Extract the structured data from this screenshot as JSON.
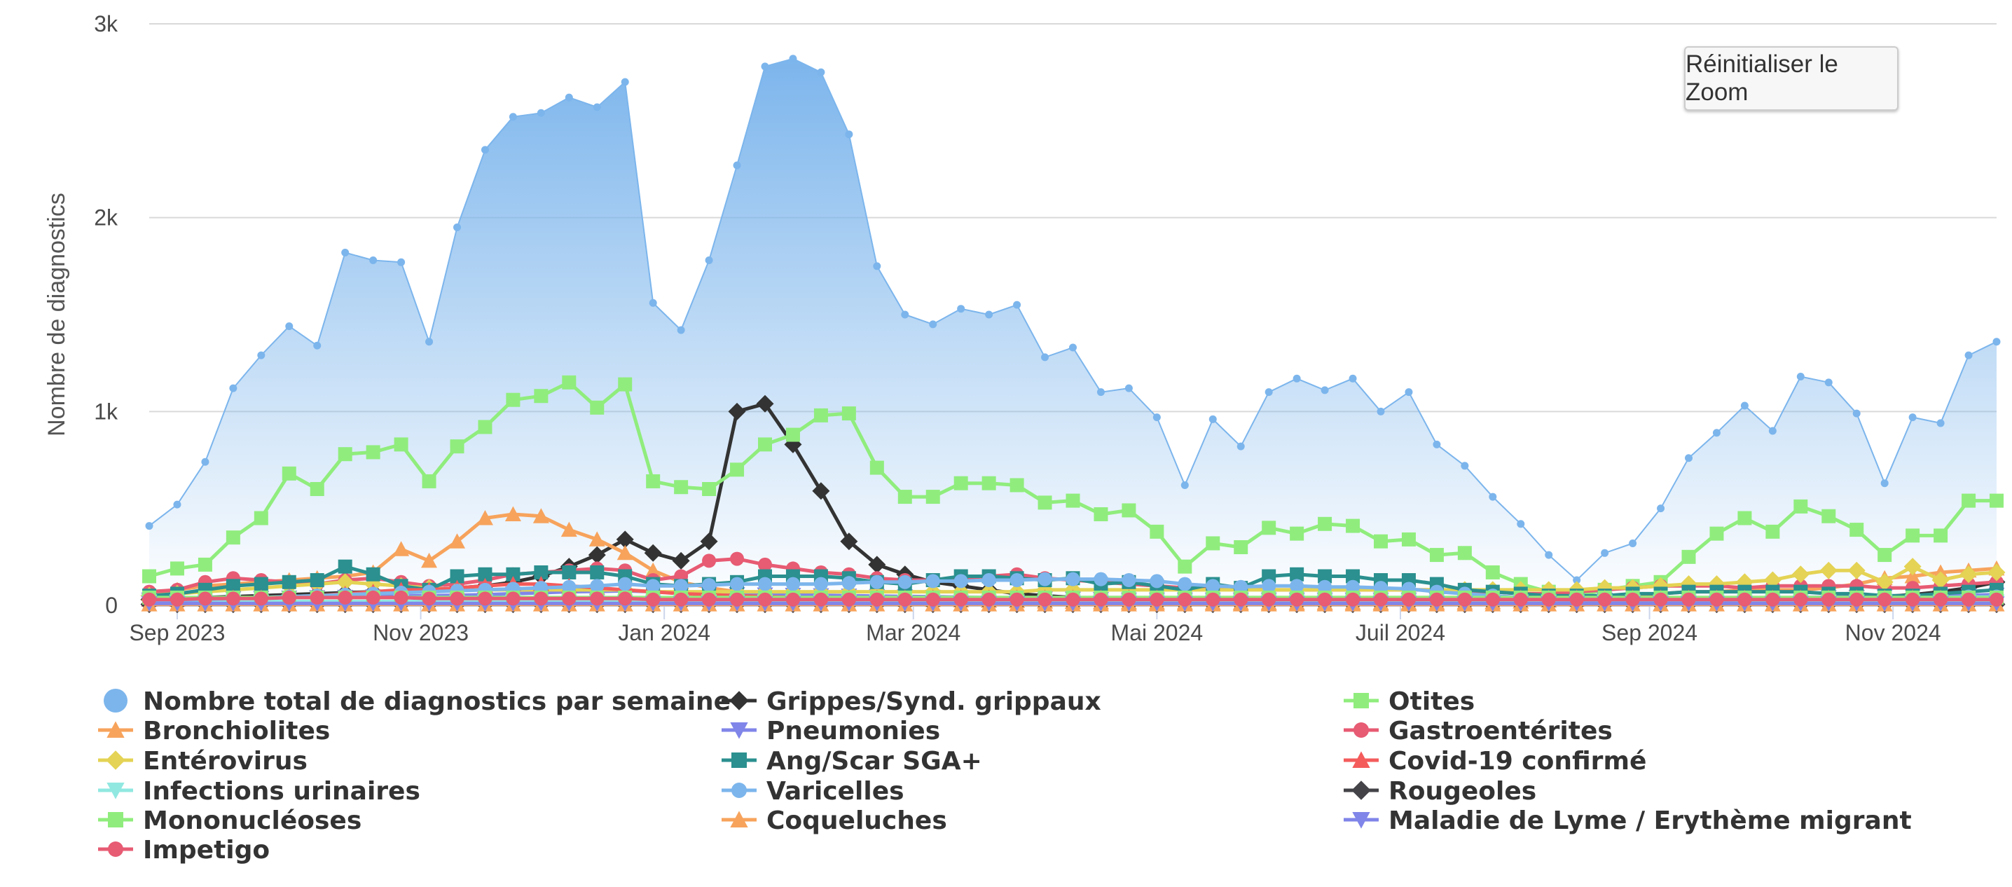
{
  "reset_zoom_label": "Réinitialiser le Zoom",
  "chart_data": {
    "type": "line",
    "ylabel": "Nombre de diagnostics",
    "xlabel": "",
    "ylim": [
      0,
      3000
    ],
    "y_ticks": [
      {
        "value": 0,
        "label": "0"
      },
      {
        "value": 1000,
        "label": "1k"
      },
      {
        "value": 2000,
        "label": "2k"
      },
      {
        "value": 3000,
        "label": "3k"
      }
    ],
    "x_start": "2023-08-27",
    "x_step_days": 7,
    "x_ticks": [
      {
        "week": 1,
        "label": "Sep 2023"
      },
      {
        "week": 9.7,
        "label": "Nov 2023"
      },
      {
        "week": 18.4,
        "label": "Jan 2024"
      },
      {
        "week": 27.3,
        "label": "Mar 2024"
      },
      {
        "week": 36,
        "label": "Mai 2024"
      },
      {
        "week": 44.7,
        "label": "Juil 2024"
      },
      {
        "week": 53.6,
        "label": "Sep 2024"
      },
      {
        "week": 62.3,
        "label": "Nov 2024"
      }
    ],
    "series": [
      {
        "name": "Nombre total de diagnostics par semaine",
        "color": "#7cb5ec",
        "symbol": "circle",
        "area": true,
        "values": [
          410,
          520,
          740,
          1120,
          1290,
          1440,
          1340,
          1820,
          1780,
          1770,
          1360,
          1950,
          2350,
          2520,
          2540,
          2620,
          2570,
          2700,
          1560,
          1420,
          1780,
          2270,
          2780,
          2820,
          2750,
          2430,
          1750,
          1500,
          1450,
          1530,
          1500,
          1550,
          1280,
          1330,
          1100,
          1120,
          970,
          620,
          960,
          820,
          1100,
          1170,
          1110,
          1170,
          1000,
          1100,
          830,
          720,
          560,
          420,
          260,
          130,
          270,
          320,
          500,
          760,
          890,
          1030,
          900,
          1180,
          1150,
          990,
          630,
          970,
          940,
          1290,
          1360
        ]
      },
      {
        "name": "Grippes/Synd. grippaux",
        "color": "#333333",
        "symbol": "diamond",
        "values": [
          30,
          35,
          40,
          45,
          50,
          55,
          60,
          65,
          70,
          75,
          80,
          90,
          100,
          120,
          150,
          200,
          260,
          340,
          270,
          230,
          330,
          1000,
          1040,
          830,
          590,
          330,
          210,
          160,
          120,
          100,
          80,
          60,
          50,
          40,
          35,
          30,
          25,
          20,
          20,
          18,
          15,
          15,
          12,
          12,
          10,
          10,
          10,
          10,
          10,
          10,
          10,
          10,
          12,
          12,
          15,
          15,
          18,
          20,
          25,
          30,
          35,
          40,
          45,
          55,
          70,
          90,
          120
        ]
      },
      {
        "name": "Otites",
        "color": "#90ed7d",
        "symbol": "square",
        "values": [
          150,
          190,
          210,
          350,
          450,
          680,
          600,
          780,
          790,
          830,
          640,
          820,
          920,
          1060,
          1080,
          1150,
          1020,
          1140,
          640,
          610,
          600,
          700,
          830,
          880,
          980,
          990,
          710,
          560,
          560,
          630,
          630,
          620,
          530,
          540,
          470,
          490,
          380,
          200,
          320,
          300,
          400,
          370,
          420,
          410,
          330,
          340,
          260,
          270,
          170,
          110,
          70,
          50,
          80,
          100,
          120,
          250,
          370,
          450,
          380,
          510,
          460,
          390,
          260,
          360,
          360,
          540,
          540
        ]
      },
      {
        "name": "Bronchiolites",
        "color": "#f7a35c",
        "symbol": "triangle",
        "values": [
          60,
          80,
          100,
          110,
          120,
          130,
          140,
          150,
          170,
          290,
          230,
          330,
          450,
          470,
          460,
          390,
          340,
          270,
          180,
          120,
          90,
          70,
          60,
          50,
          45,
          40,
          35,
          30,
          28,
          26,
          24,
          22,
          20,
          18,
          16,
          15,
          14,
          13,
          12,
          12,
          12,
          12,
          12,
          12,
          12,
          12,
          13,
          14,
          16,
          20,
          25,
          30,
          40,
          50,
          60,
          70,
          70,
          80,
          80,
          80,
          90,
          110,
          140,
          150,
          170,
          180,
          190
        ]
      },
      {
        "name": "Pneumonies",
        "color": "#8085e9",
        "symbol": "triangle-down",
        "values": [
          30,
          32,
          34,
          36,
          38,
          40,
          42,
          44,
          46,
          48,
          50,
          52,
          55,
          60,
          65,
          70,
          72,
          75,
          70,
          65,
          60,
          58,
          56,
          54,
          52,
          50,
          48,
          46,
          44,
          42,
          40,
          38,
          36,
          34,
          32,
          30,
          30,
          30,
          30,
          30,
          30,
          30,
          30,
          30,
          30,
          30,
          30,
          30,
          30,
          30,
          30,
          30,
          30,
          30,
          30,
          32,
          34,
          36,
          38,
          40,
          42,
          44,
          46,
          48,
          50,
          52,
          55
        ]
      },
      {
        "name": "Gastroentérites",
        "color": "#e75b73",
        "symbol": "circle",
        "values": [
          70,
          80,
          120,
          140,
          130,
          120,
          110,
          130,
          140,
          120,
          100,
          110,
          130,
          160,
          170,
          180,
          190,
          180,
          130,
          150,
          230,
          240,
          210,
          190,
          170,
          160,
          140,
          130,
          130,
          140,
          150,
          160,
          140,
          130,
          120,
          110,
          100,
          90,
          90,
          90,
          80,
          80,
          80,
          80,
          80,
          80,
          80,
          70,
          70,
          60,
          60,
          70,
          80,
          90,
          100,
          100,
          100,
          90,
          100,
          100,
          100,
          100,
          90,
          90,
          100,
          110,
          120
        ]
      },
      {
        "name": "Entérovirus",
        "color": "#e4d354",
        "symbol": "diamond",
        "values": [
          50,
          60,
          70,
          80,
          90,
          100,
          110,
          120,
          110,
          100,
          90,
          80,
          80,
          80,
          80,
          80,
          80,
          80,
          70,
          70,
          70,
          70,
          70,
          70,
          70,
          70,
          70,
          70,
          70,
          70,
          70,
          70,
          80,
          80,
          80,
          80,
          80,
          80,
          80,
          80,
          80,
          80,
          80,
          80,
          80,
          80,
          80,
          80,
          80,
          80,
          80,
          80,
          90,
          90,
          100,
          110,
          110,
          120,
          130,
          160,
          180,
          180,
          120,
          200,
          130,
          160,
          170
        ]
      },
      {
        "name": "Ang/Scar SGA+",
        "color": "#2b908f",
        "symbol": "square",
        "values": [
          50,
          60,
          80,
          100,
          110,
          120,
          130,
          200,
          160,
          100,
          80,
          150,
          160,
          160,
          170,
          170,
          170,
          150,
          110,
          100,
          110,
          120,
          150,
          150,
          150,
          140,
          120,
          110,
          130,
          150,
          150,
          140,
          130,
          140,
          110,
          120,
          100,
          80,
          110,
          90,
          150,
          160,
          150,
          150,
          130,
          130,
          110,
          80,
          70,
          60,
          50,
          50,
          50,
          60,
          60,
          70,
          70,
          70,
          70,
          70,
          60,
          60,
          50,
          50,
          60,
          70,
          80
        ]
      },
      {
        "name": "Covid-19 confirmé",
        "color": "#f45b5b",
        "symbol": "triangle",
        "values": [
          30,
          30,
          35,
          40,
          40,
          45,
          50,
          60,
          70,
          80,
          80,
          90,
          100,
          110,
          110,
          100,
          90,
          80,
          70,
          60,
          55,
          50,
          45,
          40,
          40,
          40,
          40,
          40,
          40,
          40,
          40,
          40,
          40,
          40,
          40,
          40,
          40,
          40,
          40,
          40,
          40,
          40,
          40,
          40,
          40,
          40,
          40,
          40,
          40,
          40,
          40,
          40,
          40,
          40,
          40,
          40,
          40,
          40,
          40,
          40,
          40,
          40,
          40,
          40,
          40,
          40,
          40
        ]
      },
      {
        "name": "Infections urinaires",
        "color": "#91e8e1",
        "symbol": "triangle-down",
        "values": [
          20,
          20,
          20,
          20,
          20,
          20,
          20,
          20,
          20,
          20,
          20,
          20,
          20,
          20,
          20,
          20,
          20,
          20,
          20,
          20,
          20,
          20,
          20,
          20,
          20,
          20,
          20,
          20,
          20,
          20,
          20,
          20,
          20,
          20,
          20,
          20,
          20,
          20,
          20,
          20,
          20,
          20,
          20,
          20,
          20,
          20,
          20,
          20,
          20,
          20,
          20,
          20,
          20,
          20,
          20,
          20,
          20,
          20,
          20,
          20,
          20,
          20,
          20,
          20,
          20,
          20,
          20
        ]
      },
      {
        "name": "Varicelles",
        "color": "#7cb5ec",
        "symbol": "circle",
        "values": [
          20,
          25,
          30,
          35,
          40,
          45,
          50,
          55,
          60,
          65,
          70,
          75,
          80,
          85,
          90,
          95,
          100,
          110,
          100,
          100,
          105,
          110,
          110,
          110,
          110,
          115,
          120,
          120,
          125,
          125,
          130,
          130,
          135,
          135,
          135,
          130,
          125,
          110,
          100,
          95,
          100,
          100,
          95,
          95,
          90,
          85,
          70,
          60,
          50,
          40,
          30,
          25,
          25,
          25,
          25,
          25,
          25,
          30,
          30,
          30,
          30,
          35,
          35,
          40,
          40,
          45,
          45
        ]
      },
      {
        "name": "Rougeoles",
        "color": "#434348",
        "symbol": "diamond",
        "values": [
          5,
          5,
          5,
          5,
          5,
          5,
          5,
          5,
          5,
          5,
          5,
          5,
          5,
          5,
          5,
          5,
          5,
          5,
          5,
          5,
          5,
          5,
          5,
          5,
          5,
          5,
          5,
          5,
          5,
          5,
          5,
          5,
          5,
          5,
          5,
          5,
          5,
          5,
          5,
          5,
          5,
          5,
          5,
          5,
          5,
          5,
          5,
          5,
          5,
          5,
          5,
          5,
          5,
          5,
          5,
          5,
          5,
          5,
          5,
          5,
          5,
          5,
          5,
          5,
          5,
          5,
          5
        ]
      },
      {
        "name": "Mononucléoses",
        "color": "#90ed7d",
        "symbol": "square",
        "values": [
          40,
          40,
          40,
          40,
          40,
          40,
          40,
          40,
          40,
          40,
          40,
          40,
          40,
          40,
          40,
          40,
          40,
          40,
          40,
          40,
          40,
          40,
          40,
          40,
          40,
          40,
          40,
          40,
          40,
          40,
          40,
          40,
          40,
          40,
          40,
          40,
          40,
          40,
          40,
          40,
          40,
          40,
          40,
          40,
          40,
          40,
          40,
          40,
          40,
          40,
          40,
          40,
          40,
          40,
          40,
          40,
          40,
          40,
          40,
          40,
          40,
          40,
          40,
          40,
          40,
          40,
          40
        ]
      },
      {
        "name": "Coqueluches",
        "color": "#f7a35c",
        "symbol": "triangle",
        "values": [
          5,
          5,
          5,
          5,
          5,
          5,
          5,
          5,
          5,
          5,
          5,
          5,
          5,
          5,
          5,
          5,
          5,
          5,
          5,
          5,
          5,
          5,
          5,
          5,
          5,
          5,
          5,
          5,
          5,
          5,
          5,
          5,
          5,
          5,
          5,
          5,
          5,
          5,
          5,
          5,
          5,
          5,
          5,
          5,
          5,
          5,
          5,
          5,
          5,
          5,
          5,
          5,
          5,
          5,
          5,
          5,
          5,
          5,
          5,
          5,
          5,
          5,
          5,
          5,
          5,
          5,
          5
        ]
      },
      {
        "name": "Maladie de Lyme / Erythème migrant",
        "color": "#8085e9",
        "symbol": "triangle-down",
        "values": [
          10,
          10,
          10,
          10,
          10,
          10,
          10,
          10,
          10,
          10,
          10,
          10,
          10,
          10,
          10,
          10,
          10,
          10,
          10,
          10,
          10,
          10,
          10,
          10,
          10,
          10,
          10,
          10,
          10,
          10,
          10,
          10,
          10,
          10,
          10,
          10,
          10,
          10,
          10,
          10,
          10,
          10,
          10,
          10,
          10,
          10,
          10,
          10,
          10,
          10,
          10,
          10,
          10,
          10,
          10,
          10,
          10,
          10,
          10,
          10,
          10,
          10,
          10,
          10,
          10,
          10,
          10
        ]
      },
      {
        "name": "Impetigo",
        "color": "#e75b73",
        "symbol": "circle",
        "values": [
          30,
          30,
          35,
          35,
          35,
          40,
          40,
          40,
          40,
          40,
          35,
          35,
          35,
          35,
          35,
          35,
          35,
          35,
          30,
          30,
          30,
          30,
          30,
          30,
          30,
          30,
          30,
          30,
          30,
          30,
          30,
          30,
          30,
          30,
          30,
          30,
          30,
          30,
          30,
          30,
          30,
          30,
          30,
          30,
          30,
          30,
          30,
          30,
          30,
          30,
          30,
          30,
          30,
          30,
          30,
          30,
          30,
          30,
          30,
          30,
          30,
          30,
          30,
          30,
          30,
          30,
          30
        ]
      }
    ],
    "legend_layout": [
      [
        0,
        1,
        2
      ],
      [
        3,
        4,
        5
      ],
      [
        6,
        7,
        8
      ],
      [
        9,
        10,
        11
      ],
      [
        12,
        13,
        14
      ],
      [
        15
      ]
    ]
  }
}
